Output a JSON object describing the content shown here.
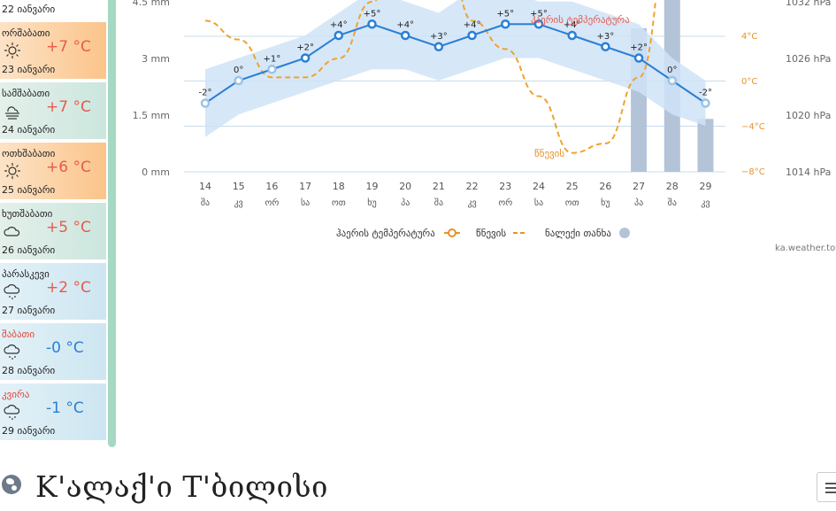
{
  "sidebar": {
    "top_date": "22 იანვარი",
    "days": [
      {
        "name": "ორშაბათი",
        "date": "23 იანვარი",
        "temp": "+7 °C",
        "icon": "sun-icon",
        "style": "warm",
        "weekend": false
      },
      {
        "name": "სამშაბათი",
        "date": "24 იანვარი",
        "temp": "+7 °C",
        "icon": "fog-icon",
        "style": "cool",
        "weekend": false
      },
      {
        "name": "ოთხშაბათი",
        "date": "25 იანვარი",
        "temp": "+6 °C",
        "icon": "sun-icon",
        "style": "warm",
        "weekend": false
      },
      {
        "name": "ხუთშაბათი",
        "date": "26 იანვარი",
        "temp": "+5 °C",
        "icon": "cloud-icon",
        "style": "cool",
        "weekend": false
      },
      {
        "name": "პარასკევი",
        "date": "27 იანვარი",
        "temp": "+2 °C",
        "icon": "snow-icon",
        "style": "cold",
        "weekend": false
      },
      {
        "name": "შაბათი",
        "date": "28 იანვარი",
        "temp": "-0 °C",
        "icon": "snow-icon",
        "style": "cold",
        "weekend": true
      },
      {
        "name": "კვირა",
        "date": "29 იანვარი",
        "temp": "-1 °C",
        "icon": "snow-icon",
        "style": "cold",
        "weekend": true
      }
    ]
  },
  "chart_data": {
    "type": "line",
    "x": [
      "14",
      "15",
      "16",
      "17",
      "18",
      "19",
      "20",
      "21",
      "22",
      "23",
      "24",
      "25",
      "26",
      "27",
      "28",
      "29"
    ],
    "weekday_labels": [
      "შა",
      "კვ",
      "ორ",
      "სა",
      "ოთ",
      "ხუ",
      "პა",
      "შა",
      "კვ",
      "ორ",
      "სა",
      "ოთ",
      "ხუ",
      "პა",
      "შა",
      "კვ"
    ],
    "temperature": {
      "name": "ჰაერის ტემპერატურა",
      "labels": [
        "-2°",
        "0°",
        "+1°",
        "+2°",
        "+4°",
        "+5°",
        "+4°",
        "+3°",
        "+4°",
        "+5°",
        "+5°",
        "+4°",
        "+3°",
        "+2°",
        "0°",
        "-2°"
      ],
      "values": [
        -2,
        0,
        1,
        2,
        4,
        5,
        4,
        3,
        4,
        5,
        5,
        4,
        3,
        2,
        0,
        -2
      ],
      "band_low": [
        -5,
        -3,
        -2,
        -1,
        0,
        1,
        1,
        0,
        1,
        2,
        2,
        1,
        0,
        -1,
        -3,
        -4
      ],
      "band_high": [
        1,
        2,
        3,
        4,
        6,
        8,
        7,
        6,
        8,
        8,
        7,
        7,
        6,
        5,
        2,
        0
      ],
      "faded_points": [
        0,
        1,
        2,
        14,
        15
      ],
      "color": "#2a7fd4",
      "band_color": "#cfe3f7"
    },
    "pressure": {
      "name": "წნევის",
      "values": [
        1030,
        1028,
        1024,
        1024,
        1026,
        1032,
        1040,
        1044,
        1030,
        1027,
        1022,
        1016,
        1017,
        1024,
        1040,
        1050
      ],
      "color": "#f0a22e"
    },
    "precipitation": {
      "name": "ნალექი თანხა",
      "values": [
        0,
        0,
        0,
        0,
        0,
        0,
        0,
        0,
        0,
        0,
        0,
        0,
        0,
        3.8,
        4.6,
        1.4
      ],
      "color": "#b3c4d9"
    },
    "y_left": {
      "ticks": [
        "0 mm",
        "1.5 mm",
        "3 mm",
        "4.5 mm"
      ],
      "range": [
        0,
        4.5
      ]
    },
    "y_temp": {
      "ticks": [
        "−8°C",
        "−4°C",
        "0°C",
        "4°C"
      ],
      "range": [
        -8,
        4
      ]
    },
    "y_pressure": {
      "ticks": [
        "1014 hPa",
        "1020 hPa",
        "1026 hPa",
        "1032 hPa"
      ],
      "range": [
        1014,
        1032
      ]
    },
    "annotations": [
      "ჰაერის ტემპერატურა",
      "წნევის"
    ],
    "legend": {
      "placement": "bottom"
    }
  },
  "source_text": "ka.weather.town",
  "city_title": "K'ალაქ'ი T'ბილისი",
  "colors": {
    "accent": "#a6d8c4",
    "temp_red": "#e75a4e",
    "temp_blue": "#2a7fd4",
    "weekend_red": "#e0443a"
  }
}
